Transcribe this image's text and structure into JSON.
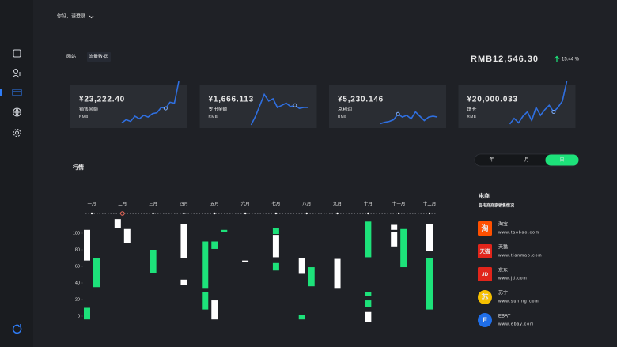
{
  "header": {
    "greeting": "你好，请登录"
  },
  "tabs": [
    {
      "label": "网站",
      "active": false
    },
    {
      "label": "流量数据",
      "active": true
    }
  ],
  "total": {
    "value": "RMB12,546.30",
    "change": "15.44 %"
  },
  "cards": [
    {
      "value": "¥23,222.40",
      "label": "销售金额",
      "unit": "RMB",
      "line": [
        5,
        12,
        8,
        20,
        14,
        22,
        18,
        26,
        28,
        40,
        38,
        52,
        50,
        100
      ],
      "highlight": 10
    },
    {
      "value": "¥1,666.113",
      "label": "支出金额",
      "unit": "RMB",
      "line": [
        0,
        20,
        45,
        70,
        55,
        60,
        40,
        45,
        50,
        42,
        45,
        38,
        40,
        40
      ],
      "highlight": 10
    },
    {
      "value": "¥5,230.146",
      "label": "总利润",
      "unit": "RMB",
      "line": [
        3,
        6,
        8,
        12,
        25,
        18,
        22,
        14,
        30,
        20,
        10,
        18,
        20,
        18
      ],
      "highlight": 4
    },
    {
      "value": "¥20,000.033",
      "label": "增长",
      "unit": "RMB",
      "line": [
        2,
        15,
        5,
        20,
        30,
        10,
        40,
        22,
        35,
        45,
        30,
        40,
        55,
        100
      ],
      "highlight": 10
    }
  ],
  "periods": [
    {
      "label": "年",
      "active": false
    },
    {
      "label": "月",
      "active": false
    },
    {
      "label": "日",
      "active": true
    }
  ],
  "market": {
    "title": "行情",
    "months": [
      "一月",
      "二月",
      "三月",
      "四月",
      "五月",
      "六月",
      "七月",
      "八月",
      "九月",
      "十月",
      "十一月",
      "十二月"
    ],
    "highlight_month": 1,
    "ylim": [
      -8,
      120
    ],
    "yticks": [
      0,
      20,
      40,
      60,
      80,
      100
    ],
    "colors": {
      "white": "#ffffff",
      "green": "#1de27a"
    },
    "columns": [
      [
        [
          {
            "color": "white",
            "range": [
              67,
              104
            ]
          },
          {
            "color": "green",
            "range": [
              -4,
              10
            ]
          }
        ],
        [
          {
            "color": "green",
            "range": [
              35,
              70
            ]
          }
        ]
      ],
      [
        [
          {
            "color": "white",
            "range": [
              106,
              117
            ]
          }
        ],
        [
          {
            "color": "white",
            "range": [
              88,
              105
            ]
          }
        ]
      ],
      [
        [
          {
            "color": "green",
            "range": [
              52,
              80
            ]
          }
        ]
      ],
      [
        [
          {
            "color": "white",
            "range": [
              70,
              111
            ]
          },
          {
            "color": "white",
            "range": [
              38,
              44
            ]
          }
        ]
      ],
      [
        [
          {
            "color": "green",
            "range": [
              34,
              90
            ]
          },
          {
            "color": "green",
            "range": [
              8,
              29
            ]
          }
        ],
        [
          {
            "color": "green",
            "range": [
              81,
              90
            ]
          },
          {
            "color": "white",
            "range": [
              -4,
              19
            ]
          }
        ],
        [
          {
            "color": "green",
            "range": [
              101,
              104
            ]
          }
        ]
      ],
      [
        [
          {
            "color": "white",
            "range": [
              65,
              67
            ]
          }
        ]
      ],
      [
        [
          {
            "color": "green",
            "range": [
              99,
              106
            ]
          },
          {
            "color": "white",
            "range": [
              71,
              98
            ]
          },
          {
            "color": "green",
            "range": [
              55,
              64
            ]
          }
        ]
      ],
      [
        [
          {
            "color": "white",
            "range": [
              51,
              70
            ]
          },
          {
            "color": "green",
            "range": [
              -4,
              1
            ]
          }
        ],
        [
          {
            "color": "green",
            "range": [
              36,
              59
            ]
          }
        ]
      ],
      [
        [
          {
            "color": "white",
            "range": [
              34,
              69
            ]
          }
        ]
      ],
      [
        [
          {
            "color": "green",
            "range": [
              71,
              114
            ]
          },
          {
            "color": "green",
            "range": [
              24,
              29
            ]
          },
          {
            "color": "green",
            "range": [
              11,
              19
            ]
          },
          {
            "color": "white",
            "range": [
              -7,
              5
            ]
          }
        ]
      ],
      [
        [
          {
            "color": "white",
            "range": [
              104,
              110
            ]
          },
          {
            "color": "white",
            "range": [
              84,
              101
            ]
          }
        ],
        [
          {
            "color": "green",
            "range": [
              59,
              105
            ]
          }
        ]
      ],
      [
        [
          {
            "color": "white",
            "range": [
              79,
              111
            ]
          },
          {
            "color": "green",
            "range": [
              8,
              70
            ]
          }
        ]
      ]
    ]
  },
  "shops": {
    "title": "电商",
    "subtitle": "各电商商家销售情况",
    "items": [
      {
        "icon": "淘",
        "name": "淘宝",
        "url": "www.taobao.com",
        "color": "#ff5000"
      },
      {
        "icon": "天猫",
        "name": "天猫",
        "url": "www.tianmao.com",
        "color": "#e1251b"
      },
      {
        "icon": "JD",
        "name": "京东",
        "url": "www.jd.com",
        "color": "#e1251b"
      },
      {
        "icon": "苏",
        "name": "苏宁",
        "url": "www.suning.com",
        "color": "#f6c000"
      },
      {
        "icon": "E",
        "name": "EBAY",
        "url": "www.ebay.com",
        "color": "#1f6ee8"
      }
    ]
  }
}
